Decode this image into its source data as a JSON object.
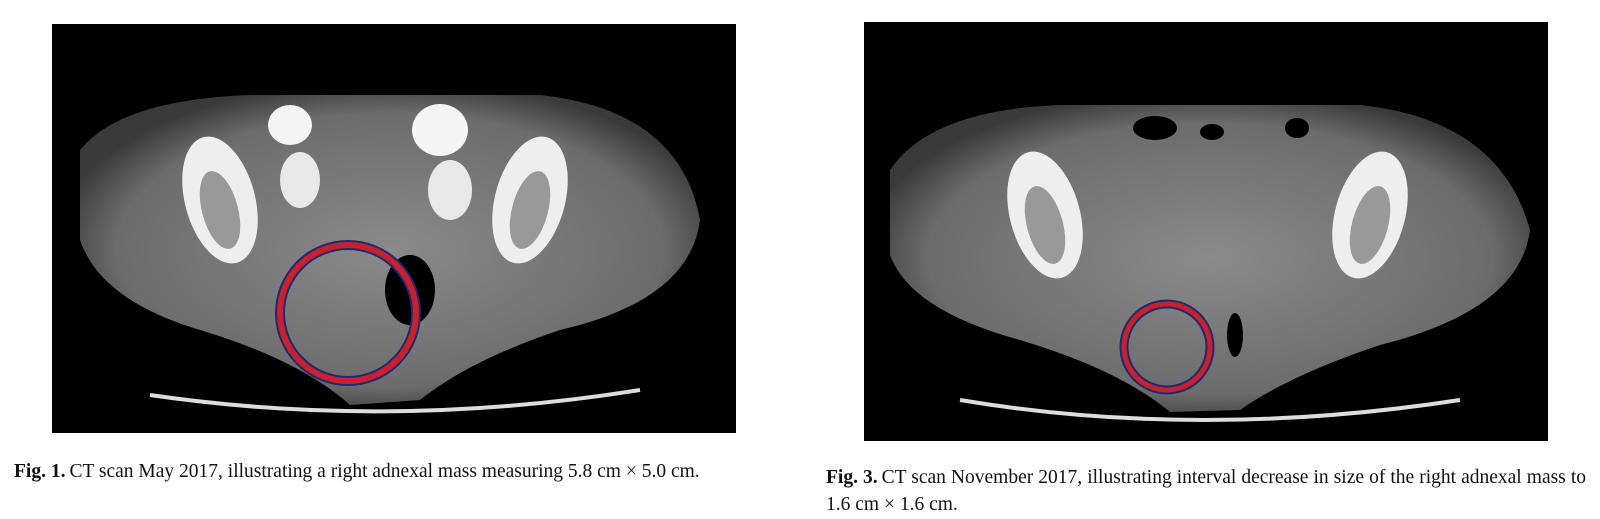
{
  "figures": [
    {
      "label": "Fig. 1.",
      "caption": "CT scan May 2017, illustrating a right adnexal mass measuring 5.8 cm × 5.0 cm."
    },
    {
      "label": "Fig. 3.",
      "caption": "CT scan November 2017, illustrating interval decrease in size of the right adnexal mass to 1.6 cm × 1.6 cm."
    }
  ]
}
